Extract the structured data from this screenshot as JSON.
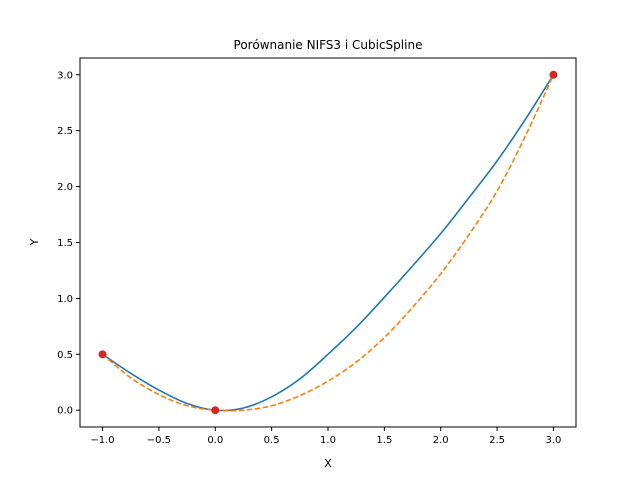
{
  "chart_data": {
    "type": "line",
    "title": "Porównanie NIFS3 i CubicSpline",
    "xlabel": "X",
    "ylabel": "Y",
    "xlim": [
      -1.2,
      3.2
    ],
    "ylim": [
      -0.15,
      3.15
    ],
    "xticks": [
      -1.0,
      -0.5,
      0.0,
      0.5,
      1.0,
      1.5,
      2.0,
      2.5,
      3.0
    ],
    "xtick_labels": [
      "−1.0",
      "−0.5",
      "0.0",
      "0.5",
      "1.0",
      "1.5",
      "2.0",
      "2.5",
      "3.0"
    ],
    "yticks": [
      0.0,
      0.5,
      1.0,
      1.5,
      2.0,
      2.5,
      3.0
    ],
    "ytick_labels": [
      "0.0",
      "0.5",
      "1.0",
      "1.5",
      "2.0",
      "2.5",
      "3.0"
    ],
    "grid": false,
    "series": [
      {
        "style": "solid",
        "color": "#1f77b4",
        "x": [
          -1.0,
          -0.75,
          -0.5,
          -0.25,
          0.0,
          0.25,
          0.5,
          0.75,
          1.0,
          1.25,
          1.5,
          1.75,
          2.0,
          2.25,
          2.5,
          2.75,
          3.0
        ],
        "y": [
          0.5,
          0.33,
          0.18,
          0.06,
          0.0,
          0.02,
          0.12,
          0.28,
          0.5,
          0.74,
          1.01,
          1.29,
          1.58,
          1.9,
          2.23,
          2.6,
          3.0
        ]
      },
      {
        "style": "dashed",
        "color": "#ff7f0e",
        "x": [
          -1.0,
          -0.75,
          -0.5,
          -0.25,
          0.0,
          0.25,
          0.5,
          0.75,
          1.0,
          1.25,
          1.5,
          1.75,
          2.0,
          2.25,
          2.5,
          2.75,
          3.0
        ],
        "y": [
          0.5,
          0.29,
          0.14,
          0.04,
          0.0,
          -0.0,
          0.04,
          0.13,
          0.26,
          0.43,
          0.65,
          0.92,
          1.22,
          1.57,
          1.96,
          2.45,
          3.0
        ]
      }
    ],
    "points": {
      "color": "#d62728",
      "x": [
        -1.0,
        0.0,
        3.0
      ],
      "y": [
        0.5,
        0.0,
        3.0
      ]
    }
  }
}
